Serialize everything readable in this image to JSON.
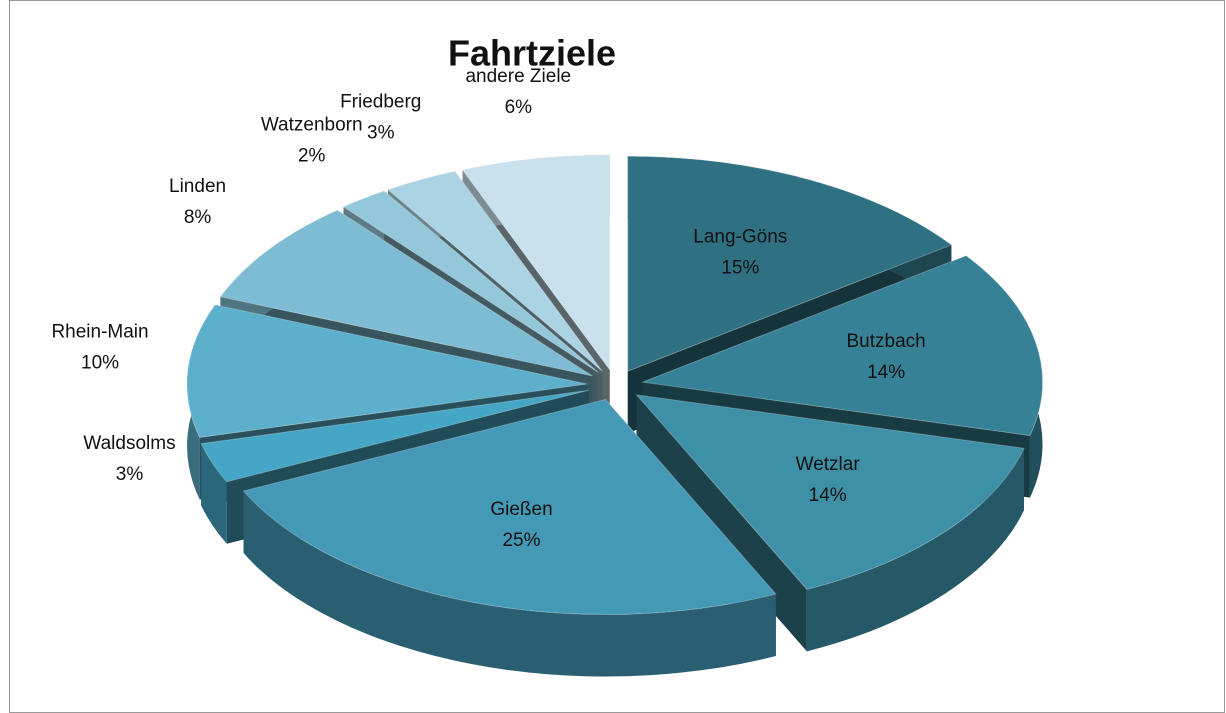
{
  "chart_data": {
    "type": "pie",
    "title": "Fahrtziele",
    "categories": [
      "Lang-Göns",
      "Butzbach",
      "Wetzlar",
      "Gießen",
      "Waldsolms",
      "Rhein-Main",
      "Linden",
      "Watzenborn",
      "Friedberg",
      "andere Ziele"
    ],
    "values": [
      15,
      14,
      14,
      25,
      3,
      10,
      8,
      2,
      3,
      6
    ],
    "value_labels": [
      "15%",
      "14%",
      "14%",
      "25%",
      "3%",
      "10%",
      "8%",
      "2%",
      "3%",
      "6%"
    ],
    "colors": [
      "#2f7183",
      "#368195",
      "#3e90a6",
      "#4499b6",
      "#46a6c6",
      "#5cb0cc",
      "#7dbcd2",
      "#94c7da",
      "#abd3e3",
      "#c8e1ec"
    ]
  }
}
